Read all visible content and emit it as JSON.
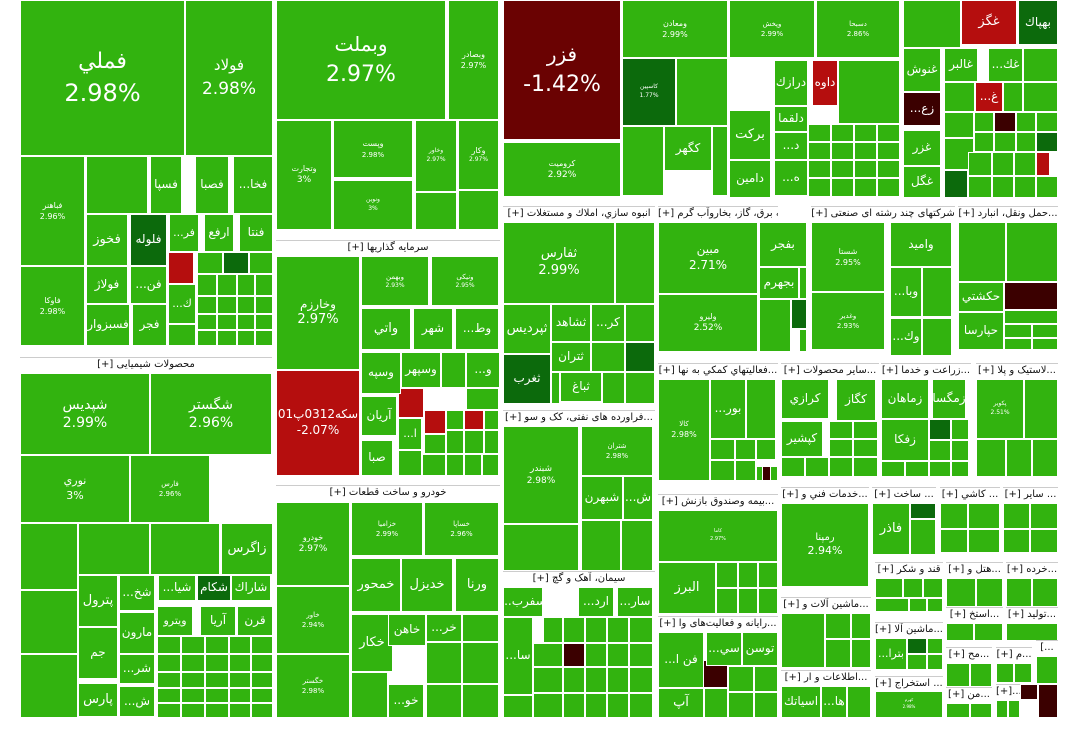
{
  "chart_data": {
    "type": "treemap",
    "title": "",
    "sections": [
      {
        "name": "[+] سرمایه گذاریها"
      },
      {
        "name": "[+] محصولات شیمیایی"
      },
      {
        "name": "[+] خودرو و ساخت قطعات"
      },
      {
        "name": "[+] انبوه سازي، املاك و مستغلات"
      },
      {
        "name": "[+] عرضه برق، گاز، بخاروآب گرم"
      },
      {
        "name": "[+] شرکتهای چند رشته ای صنعتی"
      },
      {
        "name": "[+] حمل ونقل، انبارد..."
      },
      {
        "name": "[+] فراورده های نفتی، كک و سو..."
      },
      {
        "name": "[+] فعاليتهاي كمكي به نها..."
      },
      {
        "name": "[+] ساير محصولات..."
      },
      {
        "name": "[+] زراعت و خدما..."
      },
      {
        "name": "[+] لاستيک و پلا..."
      },
      {
        "name": "[+] بيمه وصندوق بازنش..."
      },
      {
        "name": "[+] خدمات فني و..."
      },
      {
        "name": "[+] ساخت ..."
      },
      {
        "name": "[+] كاشي ..."
      },
      {
        "name": "[+] ساير ..."
      },
      {
        "name": "[+] سيمان، آهک و گچ"
      },
      {
        "name": "[+] رایانه و فعالیت‌های وا..."
      },
      {
        "name": "[+] قند و شکر"
      },
      {
        "name": "[+] هتل و..."
      },
      {
        "name": "[+] خرده..."
      },
      {
        "name": "[+] ماشين آلات و..."
      },
      {
        "name": "[+] ماشين آلا..."
      },
      {
        "name": "[+] استخ..."
      },
      {
        "name": "[+] توليد..."
      },
      {
        "name": "[+] اطلاعات و ار..."
      },
      {
        "name": "[+] استخراج ..."
      },
      {
        "name": "[+] مح..."
      },
      {
        "name": "[+] م..."
      },
      {
        "name": "[+] من..."
      },
      {
        "name": "[+]..."
      },
      {
        "name": "[..."
      }
    ],
    "tiles": [
      {
        "name": "فملي",
        "value": "2.98%"
      },
      {
        "name": "فولاد",
        "value": "2.98%"
      },
      {
        "name": "فباهنر",
        "value": "2.96%"
      },
      {
        "name": "فسپا",
        "value": ""
      },
      {
        "name": "فصبا",
        "value": ""
      },
      {
        "name": "...فخا",
        "value": ""
      },
      {
        "name": "فخوز",
        "value": ""
      },
      {
        "name": "فلوله",
        "value": ""
      },
      {
        "name": "...فر",
        "value": ""
      },
      {
        "name": "ارفع",
        "value": ""
      },
      {
        "name": "فنتا",
        "value": ""
      },
      {
        "name": "فولاژ",
        "value": ""
      },
      {
        "name": "...فن",
        "value": ""
      },
      {
        "name": "فاوكا",
        "value": "2.98%"
      },
      {
        "name": "فسبزوار",
        "value": ""
      },
      {
        "name": "فجر",
        "value": ""
      },
      {
        "name": "...ك",
        "value": ""
      },
      {
        "name": "وبملت",
        "value": "2.97%"
      },
      {
        "name": "وبصادر",
        "value": "2.97%"
      },
      {
        "name": "وتجارت",
        "value": "3%"
      },
      {
        "name": "وپست",
        "value": "2.98%"
      },
      {
        "name": "وکار",
        "value": "2.97%"
      },
      {
        "name": "وخاور",
        "value": "2.97%"
      },
      {
        "name": "ونوین",
        "value": "3%"
      },
      {
        "name": "وخارزم",
        "value": "2.97%"
      },
      {
        "name": "وبهمن",
        "value": "2.93%"
      },
      {
        "name": "ونیکی",
        "value": "2.95%"
      },
      {
        "name": "واتي",
        "value": ""
      },
      {
        "name": "شهر",
        "value": ""
      },
      {
        "name": "...وط",
        "value": ""
      },
      {
        "name": "وسپه",
        "value": ""
      },
      {
        "name": "وسپهر",
        "value": ""
      },
      {
        "name": "...و",
        "value": ""
      },
      {
        "name": "سکه0312پ01",
        "value": "-2.07%"
      },
      {
        "name": "آريان",
        "value": ""
      },
      {
        "name": "...ا",
        "value": ""
      },
      {
        "name": "صبا",
        "value": ""
      },
      {
        "name": "فزر",
        "value": "-1.42%"
      },
      {
        "name": "ومعادن",
        "value": "2.99%"
      },
      {
        "name": "کاسپین",
        "value": "1.77%"
      },
      {
        "name": "کروميت",
        "value": "2.92%"
      },
      {
        "name": "کگهر",
        "value": ""
      },
      {
        "name": "وپخش",
        "value": "2.99%"
      },
      {
        "name": "دسبحا",
        "value": "2.86%"
      },
      {
        "name": "درازك",
        "value": ""
      },
      {
        "name": "داوه",
        "value": ""
      },
      {
        "name": "دلقما",
        "value": ""
      },
      {
        "name": "بركت",
        "value": ""
      },
      {
        "name": "...د",
        "value": ""
      },
      {
        "name": "دامين",
        "value": ""
      },
      {
        "name": "...ه",
        "value": ""
      },
      {
        "name": "غگز",
        "value": ""
      },
      {
        "name": "بهپاك",
        "value": ""
      },
      {
        "name": "غنوش",
        "value": ""
      },
      {
        "name": "غالبر",
        "value": ""
      },
      {
        "name": "...غك",
        "value": ""
      },
      {
        "name": "...غ",
        "value": ""
      },
      {
        "name": "...زع",
        "value": ""
      },
      {
        "name": "غزر",
        "value": ""
      },
      {
        "name": "غگل",
        "value": ""
      },
      {
        "name": "شپديس",
        "value": "2.99%"
      },
      {
        "name": "شگستر",
        "value": "2.96%"
      },
      {
        "name": "نوري",
        "value": "3%"
      },
      {
        "name": "فارس",
        "value": "2.96%"
      },
      {
        "name": "زاگرس",
        "value": ""
      },
      {
        "name": "پترول",
        "value": ""
      },
      {
        "name": "...شخ",
        "value": ""
      },
      {
        "name": "...شيا",
        "value": ""
      },
      {
        "name": "شکام",
        "value": ""
      },
      {
        "name": "شاراك",
        "value": ""
      },
      {
        "name": "مارون",
        "value": ""
      },
      {
        "name": "ويترو",
        "value": ""
      },
      {
        "name": "آريا",
        "value": ""
      },
      {
        "name": "قرن",
        "value": ""
      },
      {
        "name": "جم",
        "value": ""
      },
      {
        "name": "...شر",
        "value": ""
      },
      {
        "name": "پارس",
        "value": ""
      },
      {
        "name": "...ش",
        "value": ""
      },
      {
        "name": "خودرو",
        "value": "2.97%"
      },
      {
        "name": "خزامیا",
        "value": "2.99%"
      },
      {
        "name": "خساپا",
        "value": "2.96%"
      },
      {
        "name": "خمحور",
        "value": ""
      },
      {
        "name": "خديزل",
        "value": ""
      },
      {
        "name": "ورنا",
        "value": ""
      },
      {
        "name": "خاور",
        "value": "2.94%"
      },
      {
        "name": "خكار",
        "value": ""
      },
      {
        "name": "خاهن",
        "value": ""
      },
      {
        "name": "...خر",
        "value": ""
      },
      {
        "name": "خگستر",
        "value": "2.98%"
      },
      {
        "name": "...خو",
        "value": ""
      },
      {
        "name": "ثفارس",
        "value": "2.99%"
      },
      {
        "name": "ثپرديس",
        "value": ""
      },
      {
        "name": "ثشاهد",
        "value": ""
      },
      {
        "name": "...كر",
        "value": ""
      },
      {
        "name": "ثتران",
        "value": ""
      },
      {
        "name": "ثغرب",
        "value": ""
      },
      {
        "name": "ثباغ",
        "value": ""
      },
      {
        "name": "مبين",
        "value": "2.71%"
      },
      {
        "name": "بفجر",
        "value": ""
      },
      {
        "name": "بجهرم",
        "value": ""
      },
      {
        "name": "ولیرو",
        "value": "2.52%"
      },
      {
        "name": "شستا",
        "value": "2.95%"
      },
      {
        "name": "واميد",
        "value": ""
      },
      {
        "name": "...وبا",
        "value": ""
      },
      {
        "name": "وغدیر",
        "value": "2.93%"
      },
      {
        "name": "...وك",
        "value": ""
      },
      {
        "name": "حكشتي",
        "value": ""
      },
      {
        "name": "حپارسا",
        "value": ""
      },
      {
        "name": "شبندر",
        "value": "2.98%"
      },
      {
        "name": "شتران",
        "value": "2.98%"
      },
      {
        "name": "شبهرن",
        "value": ""
      },
      {
        "name": "...ش",
        "value": ""
      },
      {
        "name": "کالا",
        "value": "2.98%"
      },
      {
        "name": "...بور",
        "value": ""
      },
      {
        "name": "کرازي",
        "value": ""
      },
      {
        "name": "كگاز",
        "value": ""
      },
      {
        "name": "كپشير",
        "value": ""
      },
      {
        "name": "زمگسا",
        "value": ""
      },
      {
        "name": "زماهان",
        "value": ""
      },
      {
        "name": "زفكا",
        "value": ""
      },
      {
        "name": "پکویر",
        "value": "2.51%"
      },
      {
        "name": "البرز",
        "value": ""
      },
      {
        "name": "رمپنا",
        "value": "2.94%"
      },
      {
        "name": "فاذر",
        "value": ""
      },
      {
        "name": "...سفرب",
        "value": ""
      },
      {
        "name": "...ارد",
        "value": ""
      },
      {
        "name": "...سار",
        "value": ""
      },
      {
        "name": "...سا",
        "value": ""
      },
      {
        "name": "توسن",
        "value": ""
      },
      {
        "name": "...سي",
        "value": ""
      },
      {
        "name": "...فن ا",
        "value": ""
      },
      {
        "name": "آپ",
        "value": ""
      },
      {
        "name": "اسياتك",
        "value": ""
      },
      {
        "name": "...ها",
        "value": ""
      },
      {
        "name": "...بترا",
        "value": ""
      },
      {
        "name": "کهرم",
        "value": "2.98%"
      },
      {
        "name": "کاما",
        "value": "2.97%"
      }
    ]
  }
}
